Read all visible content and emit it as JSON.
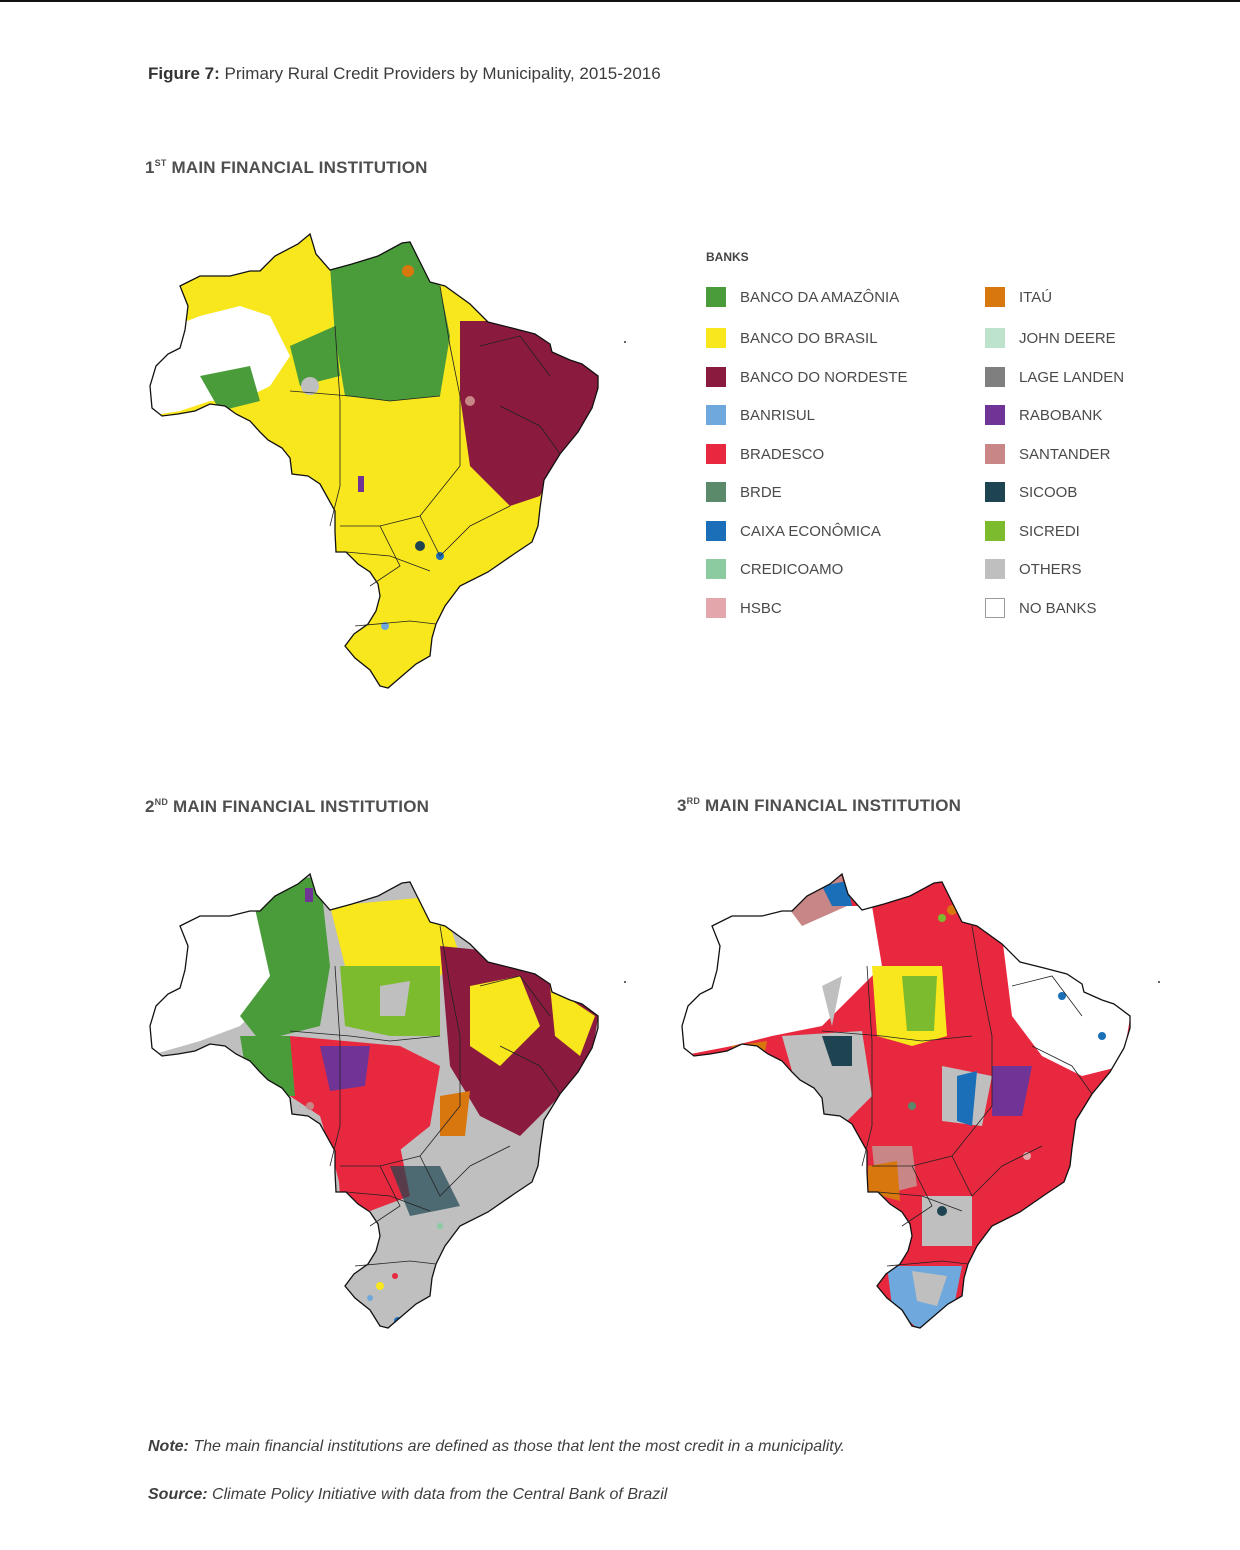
{
  "figure": {
    "label": "Figure 7:",
    "title": "Primary Rural Credit Providers by Municipality, 2015-2016"
  },
  "sections": [
    {
      "ord": "1",
      "sup": "ST",
      "text": "MAIN FINANCIAL INSTITUTION"
    },
    {
      "ord": "2",
      "sup": "ND",
      "text": "MAIN FINANCIAL INSTITUTION"
    },
    {
      "ord": "3",
      "sup": "RD",
      "text": "MAIN FINANCIAL INSTITUTION"
    }
  ],
  "legend": {
    "title": "BANKS",
    "items": [
      {
        "label": "BANCO DA AMAZÔNIA",
        "color": "#4a9c3a"
      },
      {
        "label": "BANCO DO BRASIL",
        "color": "#f8e71c"
      },
      {
        "label": "BANCO DO NORDESTE",
        "color": "#8b1a3f"
      },
      {
        "label": "BANRISUL",
        "color": "#6ea8dc"
      },
      {
        "label": "BRADESCO",
        "color": "#e8283f"
      },
      {
        "label": "BRDE",
        "color": "#5a8a6a"
      },
      {
        "label": "CAIXA ECONÔMICA",
        "color": "#1a6fb8"
      },
      {
        "label": "CREDICOAMO",
        "color": "#8ccaa0"
      },
      {
        "label": "HSBC",
        "color": "#e3a6aa"
      },
      {
        "label": "ITAÚ",
        "color": "#d9770f"
      },
      {
        "label": "JOHN DEERE",
        "color": "#bde3cc"
      },
      {
        "label": "LAGE LANDEN",
        "color": "#7f7f7f"
      },
      {
        "label": "RABOBANK",
        "color": "#6f3495"
      },
      {
        "label": "SANTANDER",
        "color": "#c98686"
      },
      {
        "label": "SICOOB",
        "color": "#1d4450"
      },
      {
        "label": "SICREDI",
        "color": "#7dbb2e"
      },
      {
        "label": "OTHERS",
        "color": "#bfbfbf"
      },
      {
        "label": "NO BANKS",
        "color": "#ffffff"
      }
    ]
  },
  "note": {
    "label": "Note:",
    "text": "The main financial institutions are defined as those that lent the most credit in a municipality."
  },
  "source": {
    "label": "Source:",
    "text": "Climate Policy Initiative with data from the Central Bank of Brazil"
  },
  "maps": [
    {
      "dominant": [
        "BANCO DO BRASIL",
        "BANCO DA AMAZÔNIA",
        "BANCO DO NORDESTE"
      ]
    },
    {
      "dominant": [
        "BANCO DO BRASIL",
        "BANCO DA AMAZÔNIA",
        "BANCO DO NORDESTE",
        "BRADESCO",
        "OTHERS"
      ]
    },
    {
      "dominant": [
        "BRADESCO",
        "OTHERS",
        "SANTANDER",
        "CAIXA ECONÔMICA",
        "SICREDI",
        "NO BANKS"
      ]
    }
  ]
}
